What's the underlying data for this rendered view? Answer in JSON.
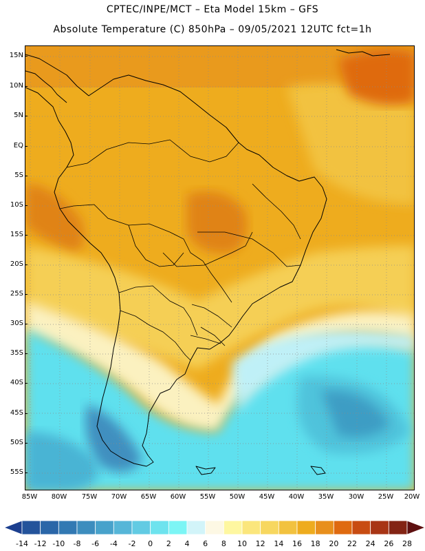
{
  "header": {
    "line1": "CPTEC/INPE/MCT –  Eta Model 15km – GFS",
    "line2": "Absolute Temperature (C) 850hPa – 09/05/2021 12UTC fct=1h"
  },
  "map": {
    "lat_labels": [
      "15N",
      "10N",
      "5N",
      "EQ",
      "5S",
      "10S",
      "15S",
      "20S",
      "25S",
      "30S",
      "35S",
      "40S",
      "45S",
      "50S",
      "55S"
    ],
    "lon_labels": [
      "85W",
      "80W",
      "75W",
      "70W",
      "65W",
      "60W",
      "55W",
      "50W",
      "45W",
      "40W",
      "35W",
      "30W",
      "25W",
      "20W"
    ]
  },
  "colorbar": {
    "labels": [
      "-14",
      "-12",
      "-10",
      "-8",
      "-6",
      "-4",
      "-2",
      "0",
      "2",
      "4",
      "6",
      "8",
      "10",
      "12",
      "14",
      "16",
      "18",
      "20",
      "22",
      "24",
      "26",
      "28"
    ],
    "colors": [
      "#1c3f8f",
      "#24539b",
      "#2a66a8",
      "#3279b3",
      "#3d8dbe",
      "#48a2cb",
      "#56b6d8",
      "#62cbe3",
      "#6ee3ee",
      "#7cf5f5",
      "#d2f4f9",
      "#fdf8e4",
      "#fef7a0",
      "#fbe67c",
      "#f7d75f",
      "#f2c23f",
      "#eeac1e",
      "#e88f1c",
      "#df6a10",
      "#c84c12",
      "#a83515",
      "#832414",
      "#5e1010"
    ]
  }
}
